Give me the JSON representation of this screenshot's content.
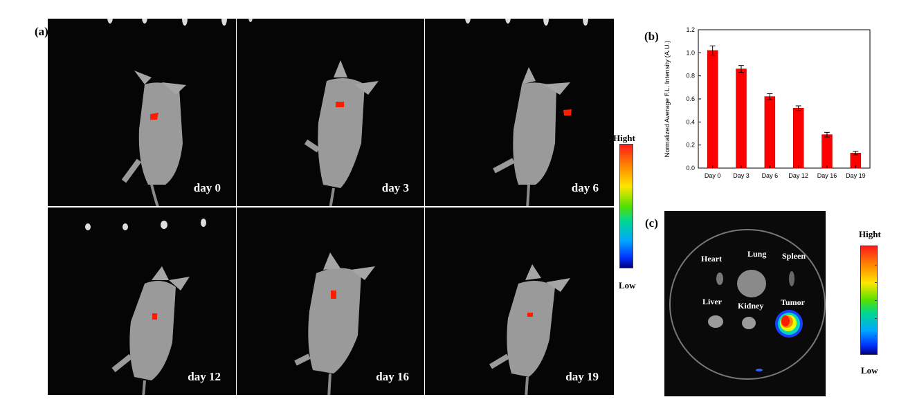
{
  "panel_labels": {
    "a": "(a)",
    "b": "(b)",
    "c": "(c)"
  },
  "mouse_days": [
    "day 0",
    "day 3",
    "day 6",
    "day 12",
    "day 16",
    "day 19"
  ],
  "colorbar_a": {
    "high": "Hight",
    "low": "Low"
  },
  "colorbar_c": {
    "high": "Hight",
    "low": "Low"
  },
  "organs": {
    "heart": "Heart",
    "lung": "Lung",
    "spleen": "Spleen",
    "liver": "Liver",
    "kidney": "Kidney",
    "tumor": "Tumor"
  },
  "chart_data": {
    "type": "bar",
    "categories": [
      "Day 0",
      "Day 3",
      "Day 6",
      "Day 12",
      "Day 16",
      "Day 19"
    ],
    "values": [
      1.02,
      0.86,
      0.62,
      0.52,
      0.29,
      0.13
    ],
    "errors": [
      0.04,
      0.03,
      0.025,
      0.02,
      0.02,
      0.015
    ],
    "ylabel": "Normalized Average F.L. Intensity (A.U.)",
    "ylim": [
      0,
      1.2
    ],
    "yticks": [
      "0.0",
      "0.2",
      "0.4",
      "0.6",
      "0.8",
      "1.0",
      "1.2"
    ],
    "bar_color": "#ff0000"
  }
}
